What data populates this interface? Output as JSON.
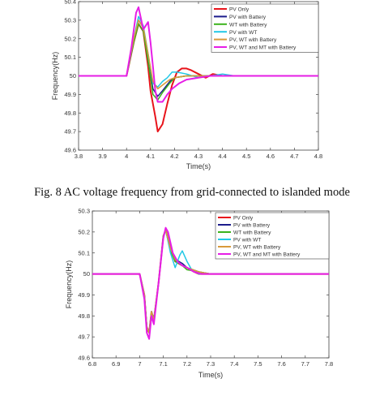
{
  "caption": "Fig. 8 AC voltage frequency from grid-connected to islanded mode",
  "chart_data": [
    {
      "type": "line",
      "title": "",
      "xlabel": "Time(s)",
      "ylabel": "Frequency(Hz)",
      "xlim": [
        3.8,
        4.8
      ],
      "ylim": [
        49.6,
        50.4
      ],
      "xticks": [
        3.8,
        3.9,
        4,
        4.1,
        4.2,
        4.3,
        4.4,
        4.5,
        4.6,
        4.7,
        4.8
      ],
      "yticks": [
        49.6,
        49.7,
        49.8,
        49.9,
        50,
        50.1,
        50.2,
        50.3,
        50.4
      ],
      "grid": false,
      "legend": "top-right",
      "series": [
        {
          "name": "PV Only",
          "color": "#e8141b",
          "x": [
            3.8,
            4.0,
            4.03,
            4.05,
            4.07,
            4.09,
            4.1,
            4.12,
            4.13,
            4.15,
            4.17,
            4.19,
            4.21,
            4.23,
            4.25,
            4.27,
            4.3,
            4.33,
            4.36,
            4.4,
            4.45,
            4.5,
            4.6,
            4.8
          ],
          "y": [
            50.0,
            50.0,
            50.18,
            50.28,
            50.24,
            50.05,
            49.92,
            49.78,
            49.7,
            49.74,
            49.85,
            49.95,
            50.02,
            50.04,
            50.04,
            50.03,
            50.01,
            49.99,
            50.01,
            50.0,
            50.0,
            50.0,
            50.0,
            50.0
          ]
        },
        {
          "name": "PV with Battery",
          "color": "#1c1c8c",
          "x": [
            3.8,
            4.0,
            4.03,
            4.05,
            4.07,
            4.09,
            4.11,
            4.13,
            4.15,
            4.18,
            4.2,
            4.25,
            4.3,
            4.4,
            4.8
          ],
          "y": [
            50.0,
            50.0,
            50.2,
            50.3,
            50.26,
            50.08,
            49.93,
            49.89,
            49.92,
            49.97,
            49.99,
            50.0,
            50.0,
            50.0,
            50.0
          ]
        },
        {
          "name": "WT with Battery",
          "color": "#3cb31c",
          "x": [
            3.8,
            4.0,
            4.03,
            4.05,
            4.07,
            4.09,
            4.11,
            4.13,
            4.15,
            4.18,
            4.2,
            4.25,
            4.3,
            4.4,
            4.8
          ],
          "y": [
            50.0,
            50.0,
            50.18,
            50.28,
            50.24,
            50.08,
            49.9,
            49.87,
            49.91,
            49.96,
            49.99,
            50.0,
            50.0,
            50.0,
            50.0
          ]
        },
        {
          "name": "PV with WT",
          "color": "#22c8e6",
          "x": [
            3.8,
            4.0,
            4.03,
            4.05,
            4.07,
            4.09,
            4.11,
            4.13,
            4.15,
            4.17,
            4.19,
            4.21,
            4.25,
            4.3,
            4.35,
            4.4,
            4.45,
            4.5,
            4.8
          ],
          "y": [
            50.0,
            50.0,
            50.2,
            50.32,
            50.27,
            50.12,
            49.96,
            49.94,
            49.97,
            49.99,
            50.02,
            50.02,
            50.01,
            49.99,
            50.0,
            50.01,
            50.0,
            50.0,
            50.0
          ]
        },
        {
          "name": "PV, WT with Battery",
          "color": "#d99a3a",
          "x": [
            3.8,
            4.0,
            4.03,
            4.05,
            4.07,
            4.09,
            4.11,
            4.13,
            4.15,
            4.18,
            4.2,
            4.25,
            4.3,
            4.4,
            4.8
          ],
          "y": [
            50.0,
            50.0,
            50.2,
            50.3,
            50.26,
            50.12,
            49.97,
            49.93,
            49.95,
            49.98,
            49.99,
            50.0,
            50.0,
            50.0,
            50.0
          ]
        },
        {
          "name": "PV, WT and MT with Battery",
          "color": "#e61ee6",
          "x": [
            3.8,
            4.0,
            4.02,
            4.04,
            4.05,
            4.07,
            4.09,
            4.1,
            4.11,
            4.12,
            4.13,
            4.15,
            4.17,
            4.19,
            4.22,
            4.25,
            4.3,
            4.35,
            4.4,
            4.5,
            4.8
          ],
          "y": [
            50.0,
            50.0,
            50.15,
            50.34,
            50.37,
            50.25,
            50.29,
            50.18,
            50.05,
            49.92,
            49.86,
            49.86,
            49.9,
            49.93,
            49.96,
            49.98,
            49.99,
            50.0,
            50.0,
            50.0,
            50.0
          ]
        }
      ]
    },
    {
      "type": "line",
      "title": "",
      "xlabel": "Time(s)",
      "ylabel": "Frequency(Hz)",
      "xlim": [
        6.8,
        7.8
      ],
      "ylim": [
        49.6,
        50.3
      ],
      "xticks": [
        6.8,
        6.9,
        7,
        7.1,
        7.2,
        7.3,
        7.4,
        7.5,
        7.6,
        7.7,
        7.8
      ],
      "yticks": [
        49.6,
        49.7,
        49.8,
        49.9,
        50,
        50.1,
        50.2,
        50.3
      ],
      "grid": false,
      "legend": "top-right",
      "series": [
        {
          "name": "PV Only",
          "color": "#e8141b",
          "x": [
            6.8,
            7.0,
            7.02,
            7.03,
            7.04,
            7.05,
            7.06,
            7.08,
            7.1,
            7.11,
            7.13,
            7.15,
            7.18,
            7.2,
            7.23,
            7.25,
            7.27,
            7.3,
            7.8
          ],
          "y": [
            50.0,
            50.0,
            49.9,
            49.74,
            49.72,
            49.82,
            49.78,
            49.96,
            50.18,
            50.21,
            50.12,
            50.06,
            50.04,
            50.03,
            50.01,
            50.0,
            50.0,
            50.0,
            50.0
          ]
        },
        {
          "name": "PV with Battery",
          "color": "#1c1c8c",
          "x": [
            6.8,
            7.0,
            7.02,
            7.03,
            7.04,
            7.05,
            7.06,
            7.08,
            7.1,
            7.11,
            7.13,
            7.15,
            7.18,
            7.2,
            7.25,
            7.3,
            7.8
          ],
          "y": [
            50.0,
            50.0,
            49.9,
            49.75,
            49.72,
            49.82,
            49.78,
            49.96,
            50.18,
            50.21,
            50.12,
            50.07,
            50.05,
            50.03,
            50.01,
            50.0,
            50.0
          ]
        },
        {
          "name": "WT with Battery",
          "color": "#3cb31c",
          "x": [
            6.8,
            7.0,
            7.02,
            7.03,
            7.04,
            7.05,
            7.06,
            7.08,
            7.1,
            7.11,
            7.13,
            7.15,
            7.18,
            7.2,
            7.25,
            7.3,
            7.8
          ],
          "y": [
            50.0,
            50.0,
            49.9,
            49.75,
            49.72,
            49.82,
            49.78,
            49.96,
            50.18,
            50.21,
            50.11,
            50.06,
            50.04,
            50.02,
            50.01,
            50.0,
            50.0
          ]
        },
        {
          "name": "PV with WT",
          "color": "#22c8e6",
          "x": [
            6.8,
            7.0,
            7.02,
            7.03,
            7.04,
            7.05,
            7.06,
            7.08,
            7.1,
            7.11,
            7.13,
            7.15,
            7.17,
            7.18,
            7.2,
            7.22,
            7.25,
            7.3,
            7.8
          ],
          "y": [
            50.0,
            50.0,
            49.9,
            49.75,
            49.72,
            49.82,
            49.78,
            49.96,
            50.18,
            50.21,
            50.1,
            50.03,
            50.09,
            50.11,
            50.06,
            50.02,
            50.0,
            50.0,
            50.0
          ]
        },
        {
          "name": "PV, WT with Battery",
          "color": "#d99a3a",
          "x": [
            6.8,
            7.0,
            7.02,
            7.03,
            7.04,
            7.05,
            7.06,
            7.08,
            7.1,
            7.11,
            7.13,
            7.15,
            7.18,
            7.2,
            7.25,
            7.3,
            7.8
          ],
          "y": [
            50.0,
            50.0,
            49.9,
            49.75,
            49.72,
            49.82,
            49.78,
            49.96,
            50.18,
            50.21,
            50.12,
            50.07,
            50.04,
            50.03,
            50.01,
            50.0,
            50.0
          ]
        },
        {
          "name": "PV, WT and MT with Battery",
          "color": "#e61ee6",
          "x": [
            6.8,
            7.0,
            7.02,
            7.03,
            7.04,
            7.05,
            7.06,
            7.08,
            7.1,
            7.11,
            7.12,
            7.14,
            7.16,
            7.18,
            7.2,
            7.23,
            7.26,
            7.3,
            7.8
          ],
          "y": [
            50.0,
            50.0,
            49.88,
            49.72,
            49.69,
            49.8,
            49.76,
            49.96,
            50.17,
            50.22,
            50.2,
            50.1,
            50.06,
            50.04,
            50.03,
            50.01,
            50.0,
            50.0,
            50.0
          ]
        }
      ]
    }
  ]
}
